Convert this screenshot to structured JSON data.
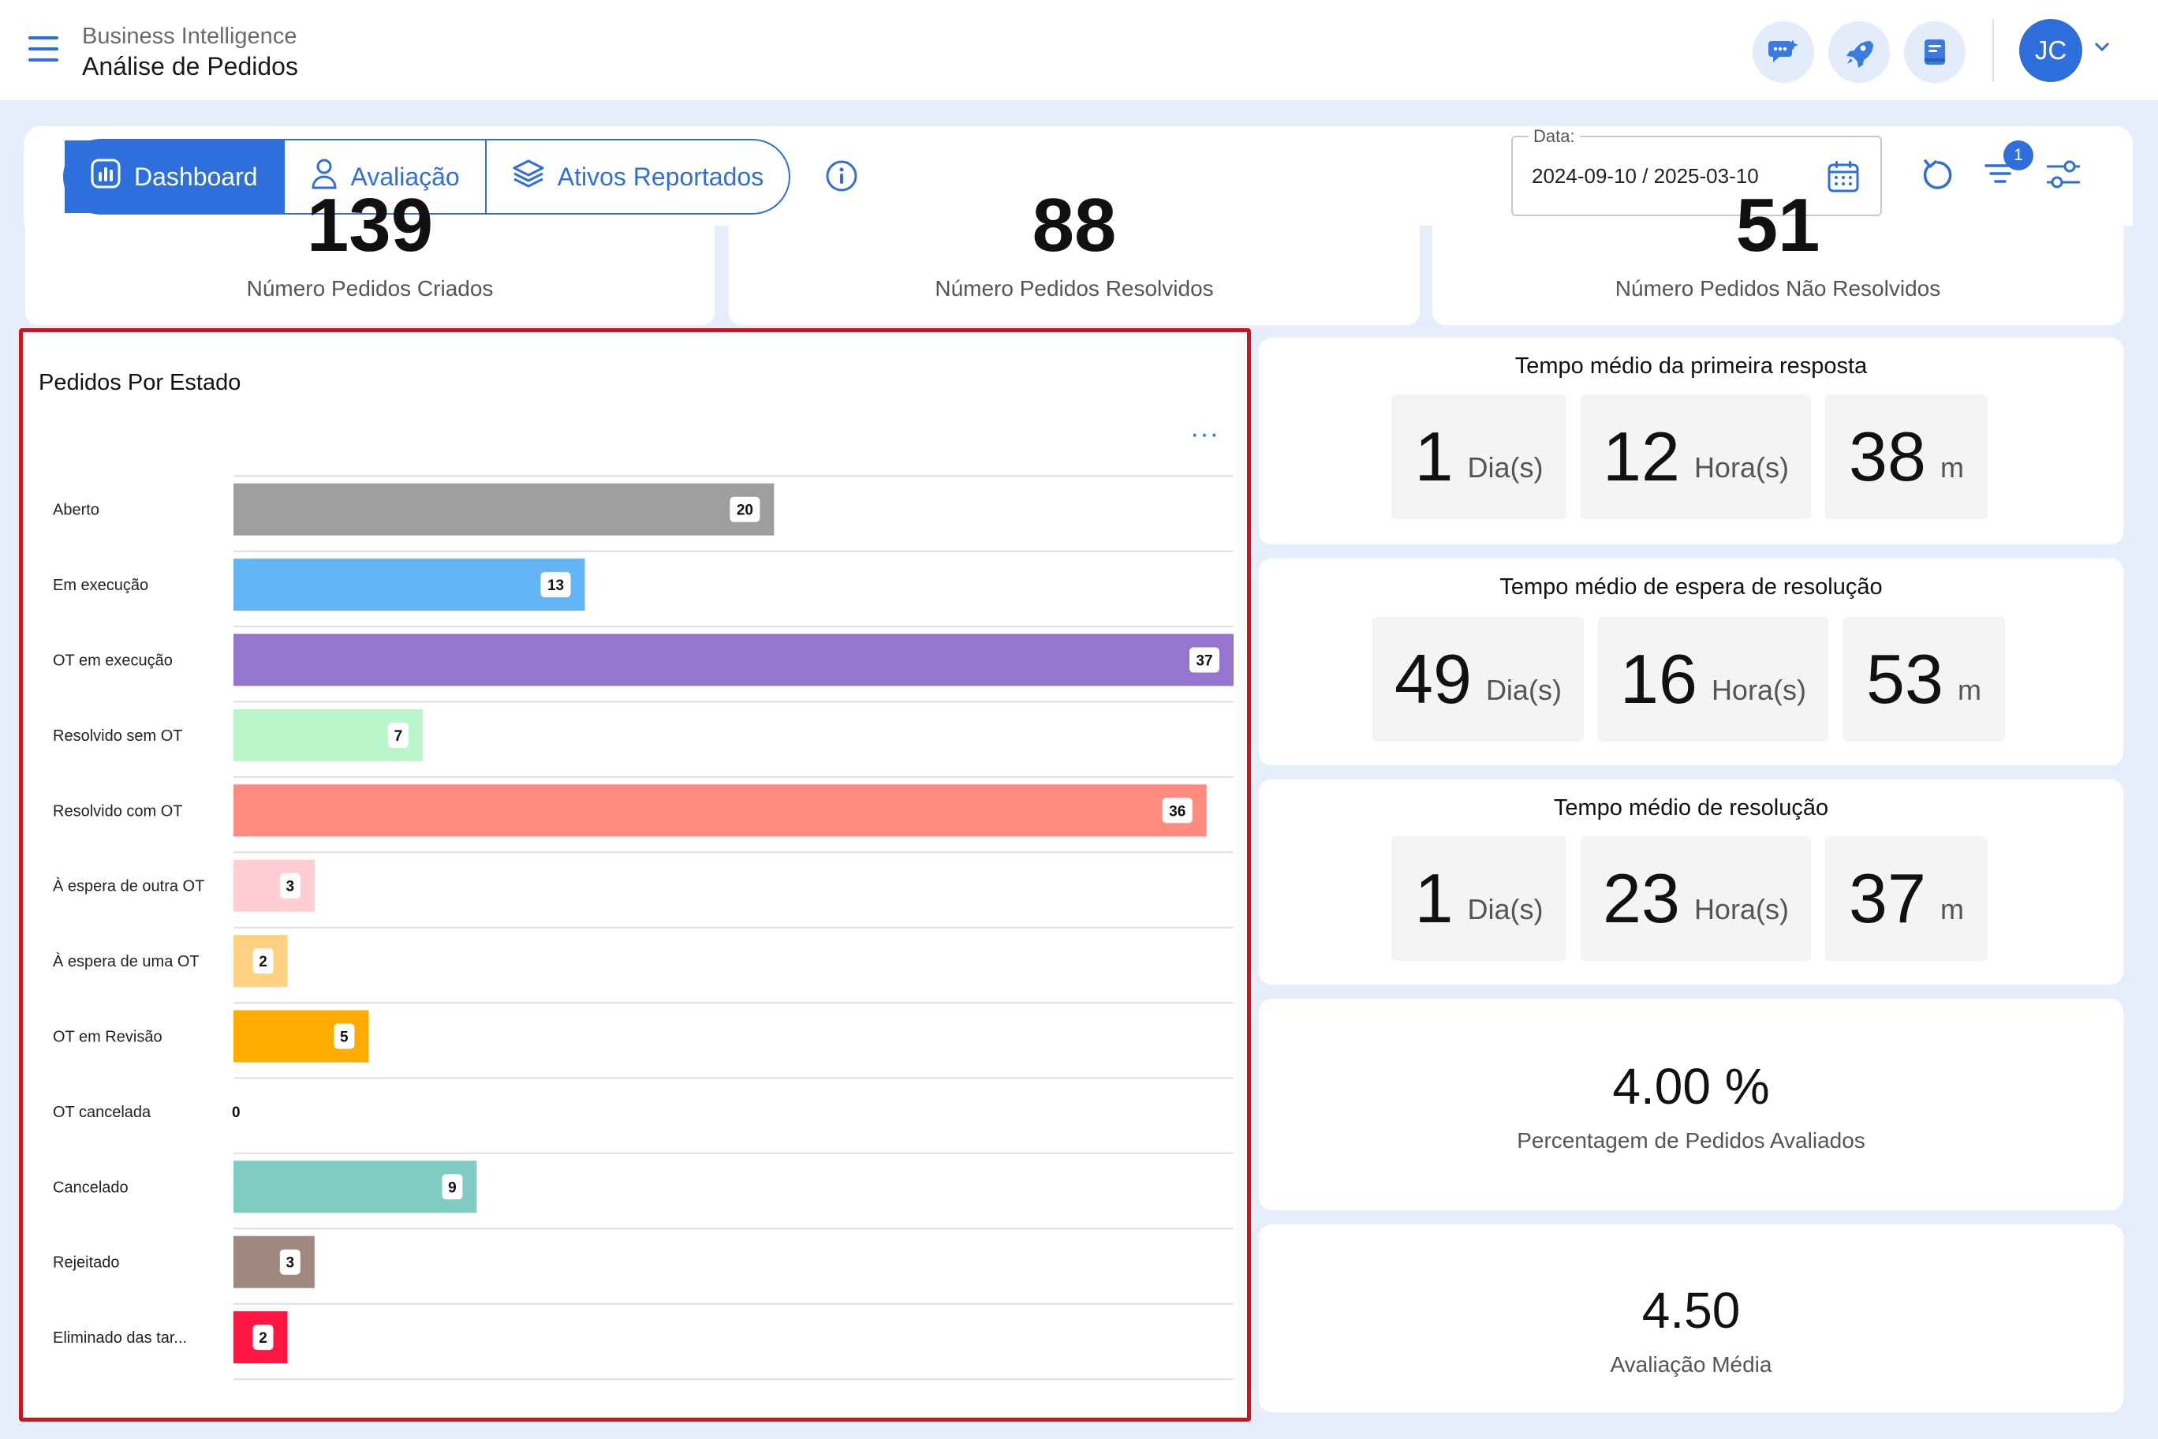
{
  "header": {
    "section": "Business Intelligence",
    "title": "Análise de Pedidos",
    "avatar_initials": "JC",
    "icons": [
      "chat-sparkle-icon",
      "rocket-icon",
      "book-icon"
    ]
  },
  "toolbar": {
    "tabs": [
      {
        "label": "Dashboard",
        "icon": "chart-icon",
        "active": true
      },
      {
        "label": "Avaliação",
        "icon": "person-icon",
        "active": false
      },
      {
        "label": "Ativos Reportados",
        "icon": "layers-icon",
        "active": false
      }
    ],
    "date_label": "Data:",
    "date_value": "2024-09-10 / 2025-03-10",
    "filter_badge": "1"
  },
  "stats": [
    {
      "label": "Número Pedidos Criados",
      "partial_value": "139"
    },
    {
      "label": "Número Pedidos Resolvidos",
      "partial_value": "88"
    },
    {
      "label": "Número Pedidos Não Resolvidos",
      "partial_value": "51"
    }
  ],
  "chart_title": "Pedidos Por Estado",
  "chart_more": "···",
  "chart_data": {
    "type": "bar",
    "orientation": "horizontal",
    "title": "Pedidos Por Estado",
    "categories": [
      "Aberto",
      "Em execução",
      "OT em execução",
      "Resolvido sem OT",
      "Resolvido com OT",
      "À espera de outra OT",
      "À espera de uma OT",
      "OT em Revisão",
      "OT cancelada",
      "Cancelado",
      "Rejeitado",
      "Eliminado das tar..."
    ],
    "values": [
      20,
      13,
      37,
      7,
      36,
      3,
      2,
      5,
      0,
      9,
      3,
      2
    ],
    "colors": [
      "#9e9e9e",
      "#64b5f6",
      "#9575cd",
      "#b9f6ca",
      "#ff8a80",
      "#ffcdd2",
      "#ffd180",
      "#ffab00",
      "#bdbdbd",
      "#80cbc4",
      "#a1887f",
      "#ff1744"
    ],
    "xlim": [
      0,
      37
    ]
  },
  "metrics": {
    "first_response": {
      "title": "Tempo médio da primeira resposta",
      "days": "1",
      "hours": "12",
      "minutes": "38",
      "unit_days": "Dia(s)",
      "unit_hours": "Hora(s)",
      "unit_minutes": "m"
    },
    "resolution_wait": {
      "title": "Tempo médio de espera de resolução",
      "days": "49",
      "hours": "16",
      "minutes": "53",
      "unit_days": "Dia(s)",
      "unit_hours": "Hora(s)",
      "unit_minutes": "m"
    },
    "resolution": {
      "title": "Tempo médio de resolução",
      "days": "1",
      "hours": "23",
      "minutes": "37",
      "unit_days": "Dia(s)",
      "unit_hours": "Hora(s)",
      "unit_minutes": "m"
    },
    "evaluated_pct": {
      "value": "4.00 %",
      "label": "Percentagem de Pedidos Avaliados"
    },
    "avg_rating": {
      "value": "4.50",
      "label": "Avaliação Média"
    }
  }
}
